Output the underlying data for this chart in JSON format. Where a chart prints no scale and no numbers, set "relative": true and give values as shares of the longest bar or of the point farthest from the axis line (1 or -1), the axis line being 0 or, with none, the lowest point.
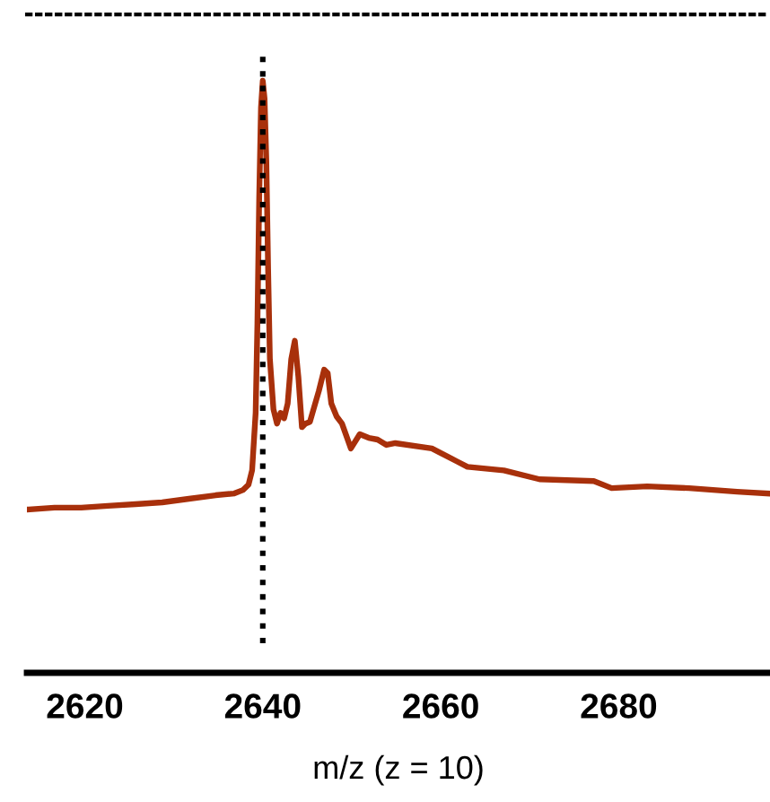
{
  "chart_data": {
    "type": "line",
    "relative": true,
    "xlabel": "m/z (z = 10)",
    "xlim": [
      2613.5,
      2697
    ],
    "xticks": [
      2620,
      2640,
      2660,
      2680
    ],
    "grid": false,
    "legend": false,
    "marker": "none",
    "line_style": "solid",
    "tick_labels": "x",
    "ref_lines": [
      {
        "axis": "x",
        "value": 2640,
        "color": "#000000",
        "line_style": "dotted"
      }
    ],
    "series": [
      {
        "color": "#a8300b",
        "x": [
          2613.7,
          2616.6,
          2619.6,
          2622.6,
          2625.7,
          2628.7,
          2631.7,
          2634.7,
          2636.8,
          2637.8,
          2638.4,
          2638.8,
          2639.2,
          2639.4,
          2639.6,
          2639.8,
          2640.0,
          2640.2,
          2640.4,
          2640.6,
          2640.8,
          2641.2,
          2641.6,
          2642.0,
          2642.4,
          2642.8,
          2643.2,
          2643.6,
          2644.0,
          2644.4,
          2644.8,
          2645.3,
          2645.7,
          2646.3,
          2646.9,
          2647.3,
          2647.7,
          2648.3,
          2648.9,
          2649.9,
          2650.9,
          2651.9,
          2652.9,
          2653.9,
          2654.9,
          2659.0,
          2663.0,
          2667.1,
          2671.1,
          2677.2,
          2679.2,
          2683.2,
          2687.9,
          2693.3,
          2696.8
        ],
        "values": [
          0.276,
          0.279,
          0.279,
          0.282,
          0.285,
          0.288,
          0.294,
          0.3,
          0.303,
          0.309,
          0.318,
          0.342,
          0.439,
          0.591,
          0.803,
          0.955,
          1.0,
          0.97,
          0.864,
          0.682,
          0.53,
          0.445,
          0.421,
          0.439,
          0.43,
          0.455,
          0.53,
          0.561,
          0.5,
          0.415,
          0.421,
          0.424,
          0.445,
          0.476,
          0.512,
          0.506,
          0.455,
          0.433,
          0.421,
          0.379,
          0.403,
          0.397,
          0.394,
          0.385,
          0.388,
          0.379,
          0.348,
          0.342,
          0.327,
          0.324,
          0.312,
          0.315,
          0.312,
          0.306,
          0.303
        ]
      }
    ]
  }
}
